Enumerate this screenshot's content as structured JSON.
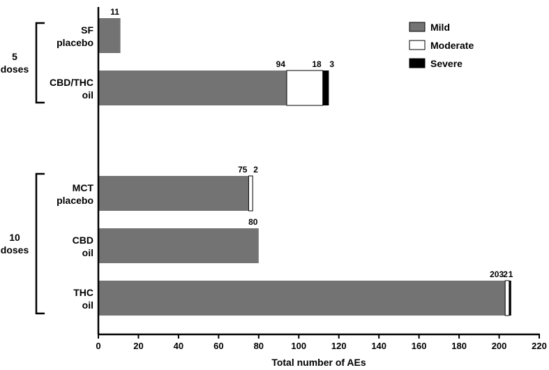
{
  "chart_data": {
    "type": "bar",
    "orientation": "horizontal",
    "stacked": true,
    "xlabel": "Total number of AEs",
    "xlim": [
      0,
      220
    ],
    "x_ticks": [
      "0",
      "20",
      "40",
      "60",
      "80",
      "100",
      "120",
      "140",
      "160",
      "180",
      "200",
      "220"
    ],
    "grid": false,
    "legend_position": "top-right",
    "legend": [
      {
        "name": "Mild",
        "color": "#737373"
      },
      {
        "name": "Moderate",
        "color": "#ffffff"
      },
      {
        "name": "Severe",
        "color": "#000000"
      }
    ],
    "groups": [
      {
        "label_lines": [
          "5",
          "doses"
        ],
        "categories": [
          0,
          1
        ]
      },
      {
        "label_lines": [
          "10",
          "doses"
        ],
        "categories": [
          2,
          3,
          4
        ]
      }
    ],
    "categories": [
      {
        "label_lines": [
          "SF",
          "placebo"
        ],
        "values": [
          11,
          0,
          0
        ],
        "data_labels": [
          "11",
          "",
          ""
        ]
      },
      {
        "label_lines": [
          "CBD/THC",
          "oil"
        ],
        "values": [
          94,
          18,
          3
        ],
        "data_labels": [
          "94",
          "18",
          "3"
        ]
      },
      {
        "label_lines": [
          "MCT",
          "placebo"
        ],
        "values": [
          75,
          2,
          0
        ],
        "data_labels": [
          "75",
          "2",
          ""
        ]
      },
      {
        "label_lines": [
          "CBD",
          "oil"
        ],
        "values": [
          80,
          0,
          0
        ],
        "data_labels": [
          "80",
          "",
          ""
        ]
      },
      {
        "label_lines": [
          "THC",
          "oil"
        ],
        "values": [
          203,
          2,
          1
        ],
        "data_labels": [
          "203",
          "2",
          "1"
        ]
      }
    ]
  }
}
